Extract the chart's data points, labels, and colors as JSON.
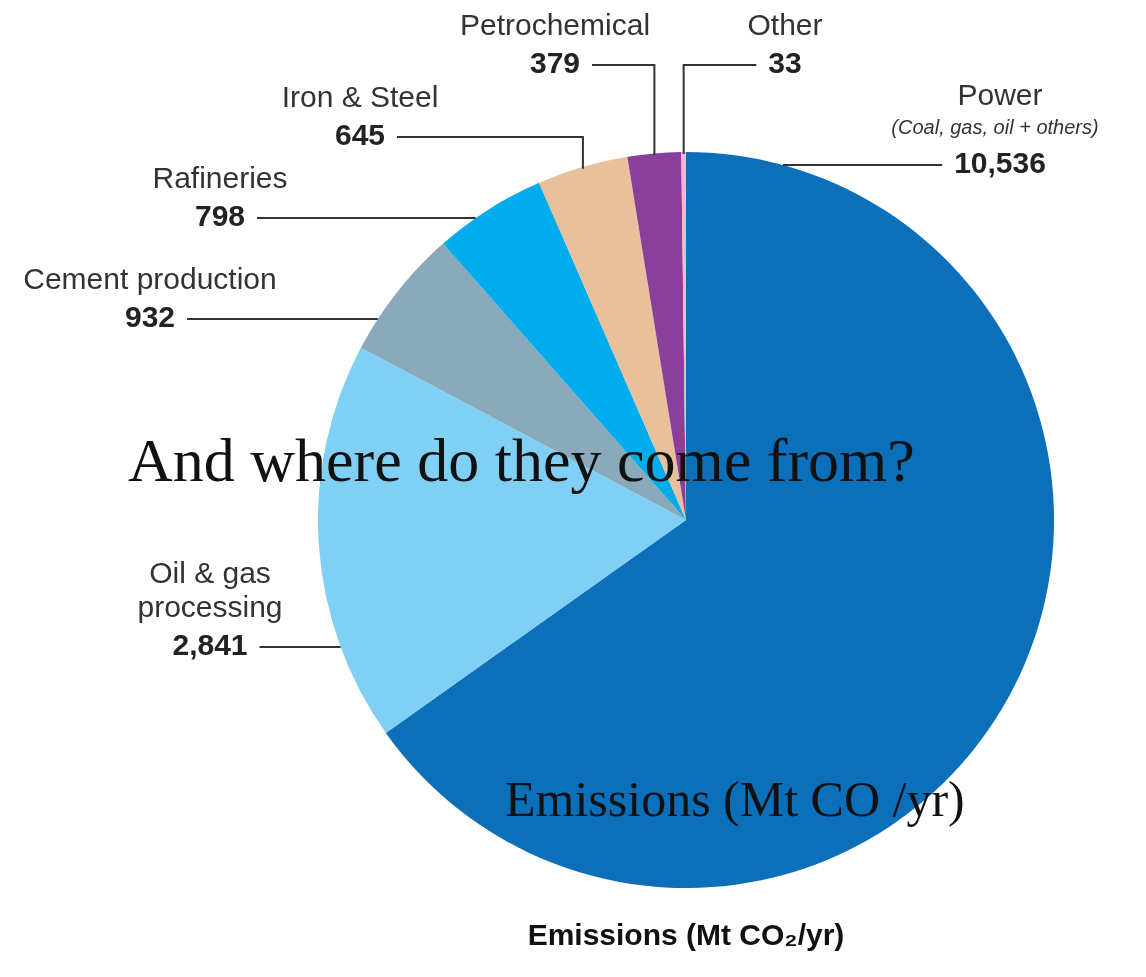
{
  "chart_data": {
    "type": "pie",
    "title": "And where do they come from?",
    "subtitle": "Emissions (Mt CO /yr)",
    "xlabel": "Emissions (Mt CO₂/yr)",
    "categories": [
      "Power",
      "Oil & gas processing",
      "Cement production",
      "Rafineries",
      "Iron & Steel",
      "Petrochemical",
      "Other"
    ],
    "values": [
      10536,
      2841,
      932,
      798,
      645,
      379,
      33
    ],
    "value_labels": [
      "10,536",
      "2,841",
      "932",
      "798",
      "645",
      "379",
      "33"
    ],
    "colors": [
      "#0b6fba",
      "#7fd0f4",
      "#8aaabb",
      "#00acec",
      "#e9c09c",
      "#8b3f9c",
      "#f2b8d6"
    ],
    "annotations": [
      "(Coal, gas, oil + others)"
    ],
    "legend": false
  }
}
